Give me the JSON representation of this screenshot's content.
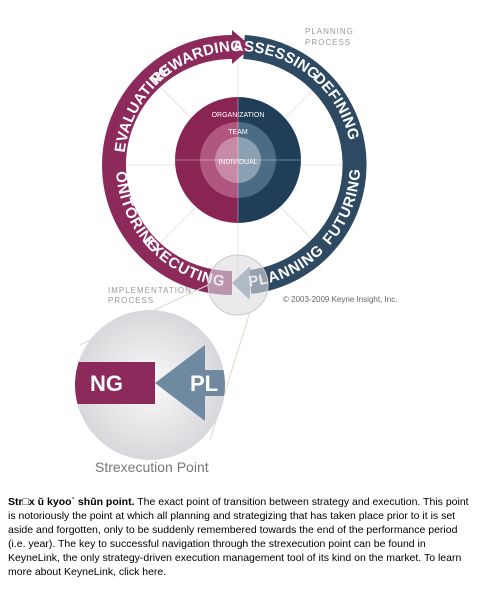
{
  "planning_process": [
    "PLANNING",
    "PROCESS"
  ],
  "implementation_process": [
    "IMPLEMENTATION",
    "PROCESS"
  ],
  "ring_labels": {
    "upper": [
      "EVALUATING",
      "REWARDING",
      "ASSESSING",
      "DEFINING"
    ],
    "lower": [
      "MONITORING",
      "EXECUTING",
      "PLANNING",
      "FUTURING"
    ]
  },
  "inner_labels": [
    "ORGANIZATION",
    "TEAM",
    "INDIVIDUAL"
  ],
  "copyright": "© 2003-2009 Keyne Insight, Inc.",
  "zoom_labels": [
    "NG",
    "PL"
  ],
  "zoom_caption": "Strexecution Point",
  "caption": {
    "term": "Str□x ŭ kyoo΄ shŭn point.",
    "text": " The exact point of transition between strategy and execution.  This point is notoriously the point at which all planning and strategizing that has taken place prior to it is set aside and forgotten, only to be suddenly remembered towards the end of the performance period (i.e. year).  The key to successful navigation through the strexecution point can be found in KeyneLink, the only strategy-driven execution management tool of its kind on the market.  To learn more about KeyneLink, click here."
  }
}
